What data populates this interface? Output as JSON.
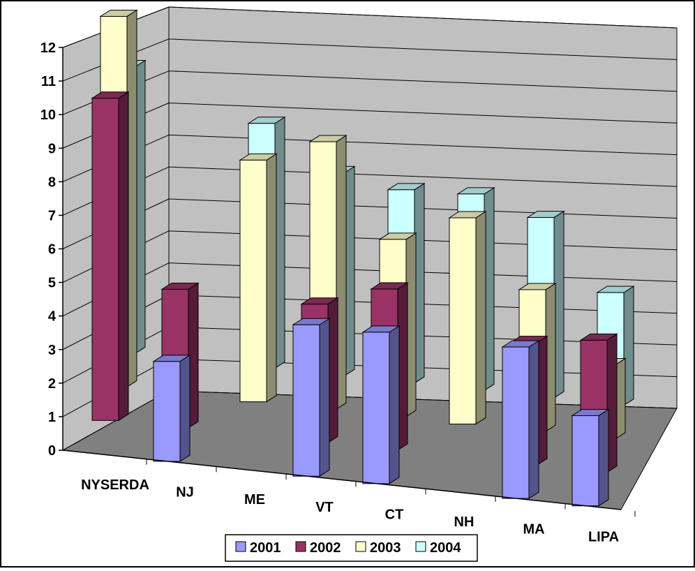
{
  "chart_data": {
    "type": "bar",
    "subtype": "3d-column-depth",
    "title": "",
    "xlabel": "",
    "ylabel": "",
    "ylim": [
      0,
      12
    ],
    "yticks": [
      "0",
      "1",
      "2",
      "3",
      "4",
      "5",
      "6",
      "7",
      "8",
      "9",
      "10",
      "11",
      "12"
    ],
    "grid": true,
    "legend_position": "bottom",
    "categories": [
      "NYSERDA",
      "NJ",
      "ME",
      "VT",
      "CT",
      "NH",
      "MA",
      "LIPA"
    ],
    "series": [
      {
        "name": "2001",
        "color": "#9999ff",
        "values": [
          null,
          3.1,
          null,
          4.7,
          4.7,
          null,
          4.7,
          2.8
        ]
      },
      {
        "name": "2002",
        "color": "#993366",
        "values": [
          10.0,
          4.3,
          null,
          4.3,
          5.0,
          null,
          3.8,
          4.1
        ]
      },
      {
        "name": "2003",
        "color": "#ffffcc",
        "values": [
          11.5,
          null,
          7.5,
          8.3,
          5.5,
          6.4,
          4.4,
          2.3
        ]
      },
      {
        "name": "2004",
        "color": "#ccffff",
        "values": [
          8.9,
          null,
          7.6,
          6.3,
          6.0,
          6.1,
          5.6,
          3.5
        ]
      }
    ]
  }
}
